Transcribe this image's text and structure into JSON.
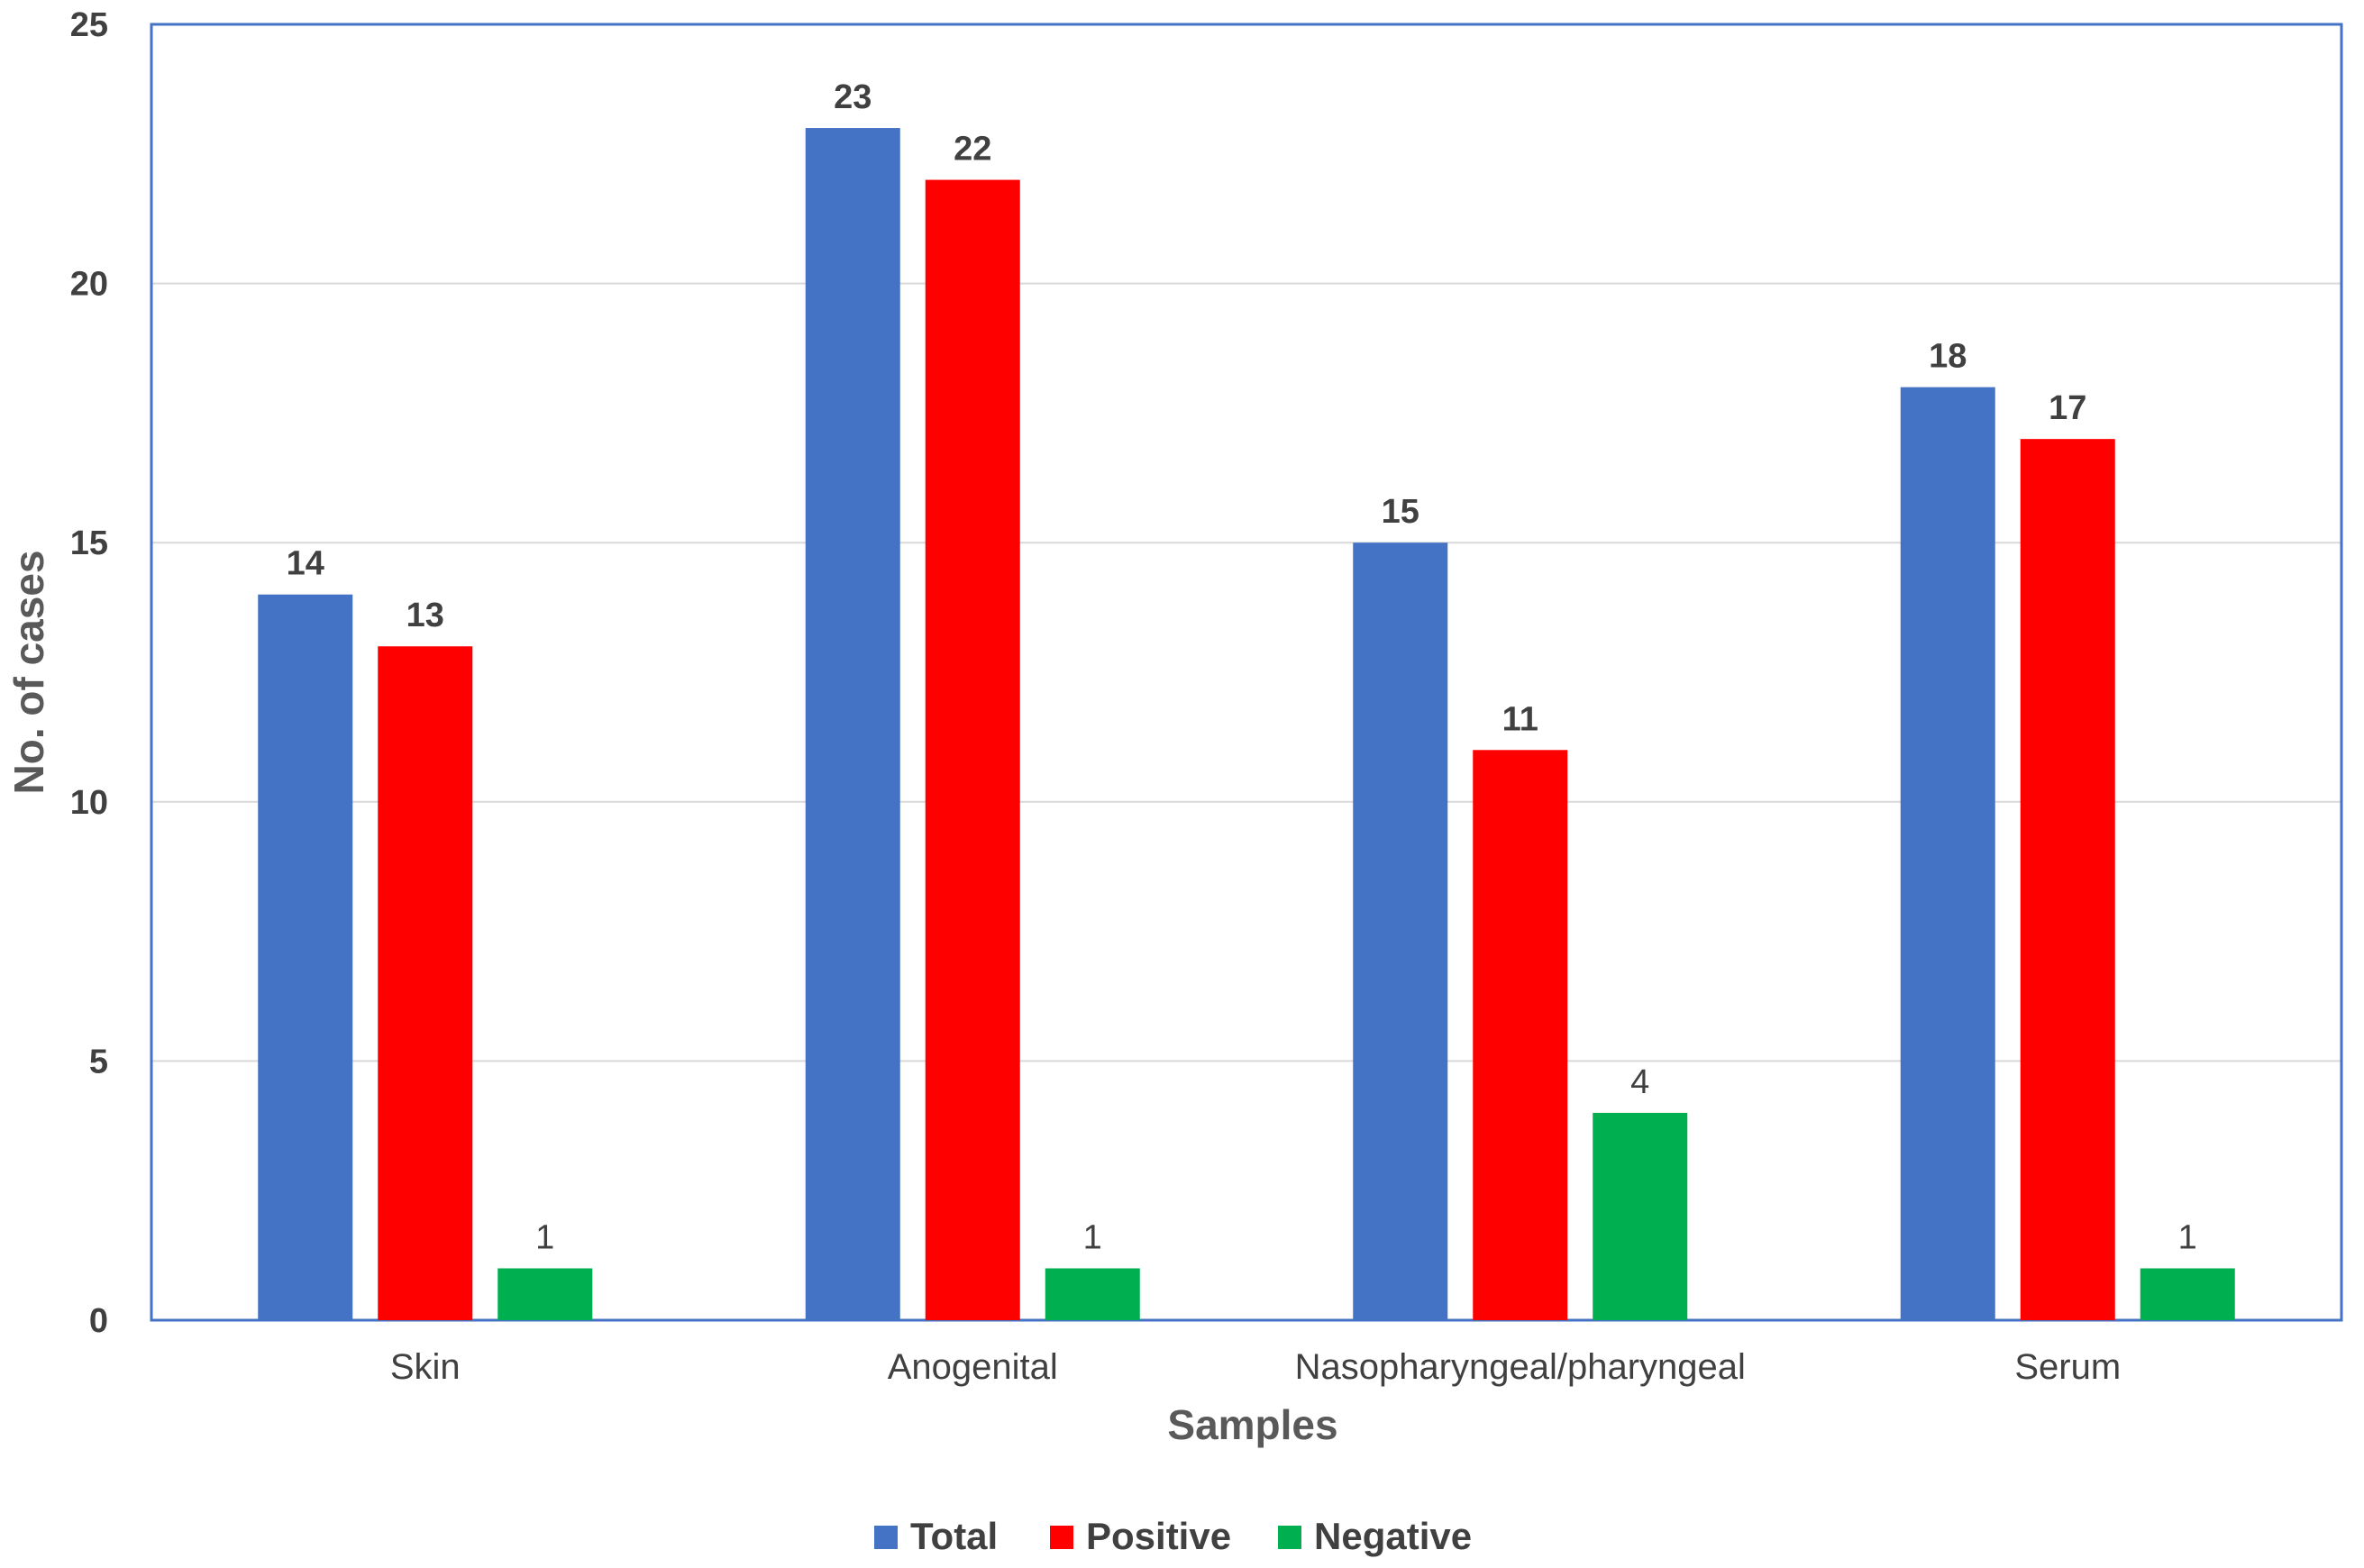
{
  "chart_data": {
    "type": "bar",
    "title": "",
    "xlabel": "Samples",
    "ylabel": "No. of cases",
    "ylim": [
      0,
      25
    ],
    "yticks": [
      0,
      5,
      10,
      15,
      20,
      25
    ],
    "grid": true,
    "legend_position": "bottom",
    "categories": [
      "Skin",
      "Anogenital",
      "Nasopharyngeal/pharyngeal",
      "Serum"
    ],
    "series": [
      {
        "name": "Total",
        "color": "#4472C4",
        "values": [
          14,
          23,
          15,
          18
        ],
        "label_bold": true
      },
      {
        "name": "Positive",
        "color": "#FF0000",
        "values": [
          13,
          22,
          11,
          17
        ],
        "label_bold": true
      },
      {
        "name": "Negative",
        "color": "#00B050",
        "values": [
          1,
          1,
          4,
          1
        ],
        "label_bold": false
      }
    ]
  }
}
